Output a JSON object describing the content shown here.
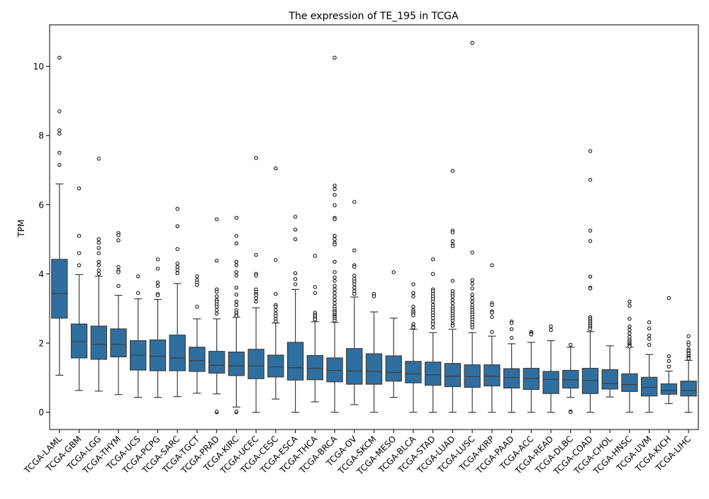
{
  "chart_data": {
    "type": "box",
    "title": "The expression of TE_195 in TCGA",
    "xlabel": "",
    "ylabel": "TPM",
    "ylim": [
      -0.5,
      11.2
    ],
    "yticks": [
      0,
      2,
      4,
      6,
      8,
      10
    ],
    "grid": false,
    "legend": "none",
    "box_color": "#2f6f9f",
    "categories": [
      "TCGA-LAML",
      "TCGA-GBM",
      "TCGA-LGG",
      "TCGA-THYM",
      "TCGA-UCS",
      "TCGA-PCPG",
      "TCGA-SARC",
      "TCGA-TGCT",
      "TCGA-PRAD",
      "TCGA-KIRC",
      "TCGA-UCEC",
      "TCGA-CESC",
      "TCGA-ESCA",
      "TCGA-THCA",
      "TCGA-BRCA",
      "TCGA-OV",
      "TCGA-SKCM",
      "TCGA-MESO",
      "TCGA-BLCA",
      "TCGA-STAD",
      "TCGA-LUAD",
      "TCGA-LUSC",
      "TCGA-KIRP",
      "TCGA-PAAD",
      "TCGA-ACC",
      "TCGA-READ",
      "TCGA-DLBC",
      "TCGA-COAD",
      "TCGA-CHOL",
      "TCGA-HNSC",
      "TCGA-UVM",
      "TCGA-KICH",
      "TCGA-LIHC"
    ],
    "boxes": [
      {
        "whislo": 1.07,
        "q1": 2.72,
        "med": 3.43,
        "q3": 4.42,
        "whishi": 6.6,
        "fliers": [
          10.25,
          8.7,
          8.15,
          8.05,
          7.5,
          7.15
        ]
      },
      {
        "whislo": 0.63,
        "q1": 1.57,
        "med": 2.04,
        "q3": 2.55,
        "whishi": 3.98,
        "fliers": [
          6.47,
          5.1,
          4.6,
          4.25
        ]
      },
      {
        "whislo": 0.61,
        "q1": 1.53,
        "med": 1.96,
        "q3": 2.49,
        "whishi": 3.93,
        "fliers": [
          7.33,
          5.0,
          4.9,
          4.75,
          4.6,
          4.35,
          4.25,
          4.1,
          4.0
        ]
      },
      {
        "whislo": 0.51,
        "q1": 1.6,
        "med": 1.96,
        "q3": 2.41,
        "whishi": 3.38,
        "fliers": [
          5.18,
          5.12,
          4.97,
          4.2,
          4.1,
          4.05,
          3.65
        ]
      },
      {
        "whislo": 0.43,
        "q1": 1.22,
        "med": 1.65,
        "q3": 2.07,
        "whishi": 3.28,
        "fliers": [
          3.93,
          3.45
        ]
      },
      {
        "whislo": 0.43,
        "q1": 1.2,
        "med": 1.62,
        "q3": 2.09,
        "whishi": 3.26,
        "fliers": [
          4.42,
          4.15,
          3.75,
          3.65,
          3.42,
          3.38
        ]
      },
      {
        "whislo": 0.45,
        "q1": 1.2,
        "med": 1.57,
        "q3": 2.23,
        "whishi": 3.72,
        "fliers": [
          5.88,
          5.38,
          4.72,
          4.3,
          4.2,
          4.12,
          4.02
        ]
      },
      {
        "whislo": 0.55,
        "q1": 1.18,
        "med": 1.49,
        "q3": 1.88,
        "whishi": 2.7,
        "fliers": [
          3.93,
          3.82,
          3.75,
          3.68,
          3.05
        ]
      },
      {
        "whislo": 0.53,
        "q1": 1.13,
        "med": 1.36,
        "q3": 1.76,
        "whishi": 2.7,
        "fliers": [
          5.58,
          4.38,
          3.55,
          3.48,
          3.35,
          3.25,
          3.2,
          3.12,
          3.05,
          2.95,
          2.85,
          0.0,
          0.02
        ]
      },
      {
        "whislo": 0.15,
        "q1": 1.06,
        "med": 1.34,
        "q3": 1.74,
        "whishi": 2.75,
        "fliers": [
          5.62,
          5.1,
          4.88,
          4.35,
          4.25,
          4.05,
          3.95,
          3.6,
          3.4,
          3.2,
          3.1,
          2.95,
          2.88,
          2.82,
          2.78,
          0.0,
          0.02
        ]
      },
      {
        "whislo": 0.0,
        "q1": 0.97,
        "med": 1.34,
        "q3": 1.82,
        "whishi": 3.02,
        "fliers": [
          7.35,
          4.55,
          4.0,
          3.95,
          3.55,
          3.48,
          3.42,
          3.38,
          3.3,
          3.2
        ]
      },
      {
        "whislo": 0.38,
        "q1": 1.02,
        "med": 1.31,
        "q3": 1.65,
        "whishi": 2.58,
        "fliers": [
          7.05,
          4.4,
          3.42,
          3.1,
          3.05,
          2.95,
          2.85,
          2.78,
          2.7,
          2.62
        ]
      },
      {
        "whislo": 0.0,
        "q1": 0.93,
        "med": 1.29,
        "q3": 2.02,
        "whishi": 3.55,
        "fliers": [
          5.65,
          5.28,
          5.0,
          4.02,
          3.85,
          3.7
        ]
      },
      {
        "whislo": 0.3,
        "q1": 0.94,
        "med": 1.27,
        "q3": 1.64,
        "whishi": 2.62,
        "fliers": [
          4.52,
          3.62,
          3.45,
          2.88,
          2.82,
          2.78,
          2.72,
          2.68
        ]
      },
      {
        "whislo": 0.0,
        "q1": 0.88,
        "med": 1.21,
        "q3": 1.57,
        "whishi": 2.6,
        "fliers": [
          10.25,
          6.55,
          6.45,
          6.28,
          5.98,
          5.62,
          5.58,
          5.1,
          5.0,
          4.9,
          4.85,
          4.35,
          4.05,
          3.9,
          3.8,
          3.65,
          3.55,
          3.45,
          3.35,
          3.25,
          3.15,
          3.05,
          2.98,
          2.92,
          2.88,
          2.82,
          2.78,
          2.75,
          2.7,
          2.65
        ]
      },
      {
        "whislo": 0.22,
        "q1": 0.81,
        "med": 1.19,
        "q3": 1.84,
        "whishi": 3.33,
        "fliers": [
          6.08,
          4.68,
          4.25,
          4.2,
          3.95,
          3.85,
          3.78,
          3.7,
          3.6,
          3.5,
          3.42
        ]
      },
      {
        "whislo": 0.0,
        "q1": 0.81,
        "med": 1.18,
        "q3": 1.69,
        "whishi": 2.9,
        "fliers": [
          3.42,
          3.35
        ]
      },
      {
        "whislo": 0.43,
        "q1": 0.9,
        "med": 1.15,
        "q3": 1.63,
        "whishi": 2.72,
        "fliers": [
          4.05
        ]
      },
      {
        "whislo": 0.0,
        "q1": 0.85,
        "med": 1.11,
        "q3": 1.47,
        "whishi": 2.4,
        "fliers": [
          3.7,
          3.45,
          3.35,
          3.05,
          2.95,
          2.9,
          2.85,
          2.8,
          2.55,
          2.48,
          2.45
        ]
      },
      {
        "whislo": 0.0,
        "q1": 0.78,
        "med": 1.08,
        "q3": 1.45,
        "whishi": 2.3,
        "fliers": [
          4.42,
          4.0,
          3.55,
          3.5,
          3.42,
          3.35,
          3.28,
          3.2,
          3.1,
          3.02,
          2.95,
          2.88,
          2.8,
          2.72,
          2.62,
          2.55,
          2.45
        ]
      },
      {
        "whislo": 0.0,
        "q1": 0.74,
        "med": 1.04,
        "q3": 1.41,
        "whishi": 2.4,
        "fliers": [
          6.98,
          5.25,
          5.2,
          4.95,
          4.85,
          4.8,
          3.8,
          3.5,
          3.42,
          3.35,
          3.25,
          3.15,
          3.05,
          2.98,
          2.92,
          2.85,
          2.78,
          2.72,
          2.65,
          2.55,
          2.5
        ]
      },
      {
        "whislo": 0.0,
        "q1": 0.72,
        "med": 1.03,
        "q3": 1.37,
        "whishi": 2.3,
        "fliers": [
          10.68,
          4.62,
          3.82,
          3.72,
          3.58,
          3.4,
          3.3,
          3.2,
          3.1,
          3.02,
          2.95,
          2.88,
          2.82,
          2.75,
          2.68,
          2.6,
          2.52,
          2.45
        ]
      },
      {
        "whislo": 0.0,
        "q1": 0.76,
        "med": 1.04,
        "q3": 1.37,
        "whishi": 2.2,
        "fliers": [
          4.25,
          3.15,
          3.1,
          2.92,
          2.88,
          2.75,
          2.32
        ]
      },
      {
        "whislo": 0.0,
        "q1": 0.7,
        "med": 1.0,
        "q3": 1.26,
        "whishi": 1.98,
        "fliers": [
          2.62,
          2.58,
          2.4,
          2.15
        ]
      },
      {
        "whislo": 0.0,
        "q1": 0.66,
        "med": 0.98,
        "q3": 1.27,
        "whishi": 2.02,
        "fliers": [
          2.32,
          2.28,
          2.25
        ]
      },
      {
        "whislo": 0.0,
        "q1": 0.54,
        "med": 0.95,
        "q3": 1.18,
        "whishi": 2.07,
        "fliers": [
          2.48,
          2.38
        ]
      },
      {
        "whislo": 0.43,
        "q1": 0.7,
        "med": 0.94,
        "q3": 1.21,
        "whishi": 1.88,
        "fliers": [
          1.95,
          0.02,
          0.0
        ]
      },
      {
        "whislo": 0.0,
        "q1": 0.54,
        "med": 0.92,
        "q3": 1.27,
        "whishi": 2.33,
        "fliers": [
          7.55,
          6.72,
          5.25,
          4.95,
          3.92,
          3.6,
          3.58,
          2.75,
          2.7,
          2.65,
          2.6,
          2.55,
          2.5,
          2.45,
          2.4
        ]
      },
      {
        "whislo": 0.44,
        "q1": 0.67,
        "med": 0.83,
        "q3": 1.23,
        "whishi": 1.92,
        "fliers": []
      },
      {
        "whislo": 0.0,
        "q1": 0.6,
        "med": 0.8,
        "q3": 1.11,
        "whishi": 1.88,
        "fliers": [
          3.2,
          3.08,
          2.7,
          2.48,
          2.38,
          2.28,
          2.18,
          2.1,
          2.05,
          2.0,
          1.96,
          1.93,
          1.9
        ]
      },
      {
        "whislo": 0.0,
        "q1": 0.47,
        "med": 0.72,
        "q3": 1.01,
        "whishi": 1.67,
        "fliers": [
          2.6,
          2.42,
          2.22,
          2.12,
          1.95
        ]
      },
      {
        "whislo": 0.25,
        "q1": 0.52,
        "med": 0.63,
        "q3": 0.82,
        "whishi": 1.19,
        "fliers": [
          3.3,
          1.62,
          1.48,
          1.32
        ]
      },
      {
        "whislo": 0.0,
        "q1": 0.47,
        "med": 0.63,
        "q3": 0.9,
        "whishi": 1.5,
        "fliers": [
          2.2,
          2.02,
          1.95,
          1.82,
          1.78,
          1.72,
          1.68,
          1.62,
          1.58,
          1.55
        ]
      }
    ]
  }
}
